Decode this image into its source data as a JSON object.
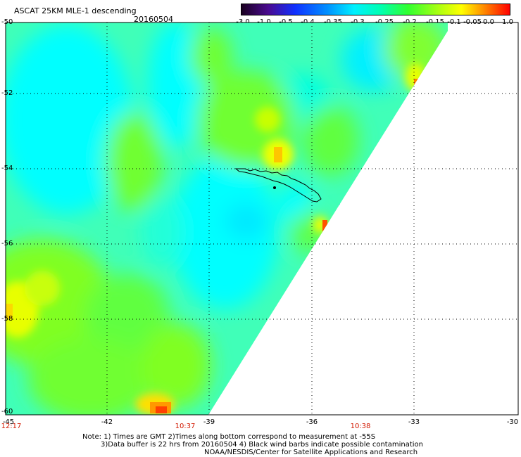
{
  "header": {
    "title": "ASCAT 25KM MLE-1 descending",
    "date": "20160504"
  },
  "colorbar": {
    "labels": [
      "-3.0",
      "-1.0",
      "-0.5",
      "-0.4",
      "-0.35",
      "-0.3",
      "-0.25",
      "-0.2",
      "-0.15",
      "-0.1",
      "-0.05",
      "0.0",
      "1.0"
    ],
    "colors": [
      "#2a0030",
      "#5a10a8",
      "#1428ff",
      "#0078ff",
      "#00b8ff",
      "#00f0ff",
      "#00ffc0",
      "#40ff40",
      "#a0ff20",
      "#e8ff00",
      "#ffb000",
      "#ff5000",
      "#ff1010"
    ]
  },
  "map": {
    "lat_labels": [
      "-50",
      "-52",
      "-54",
      "-56",
      "-58",
      "-60"
    ],
    "lon_labels": [
      "-45",
      "-42",
      "-39",
      "-36",
      "-33",
      "-30"
    ],
    "time_labels": [
      "12:17",
      "10:37",
      "10:38"
    ],
    "colors": {
      "cyan": "#00ffff",
      "aqua": "#40ffc8",
      "green": "#60ff30",
      "yellowgreen": "#c8ff00",
      "yellow": "#ffe800",
      "orange": "#ff9800",
      "red": "#ff4000",
      "blue": "#0070ff"
    }
  },
  "notes": {
    "line1": "Note: 1) Times are GMT 2)Times along bottom correspond to measurement at -55S",
    "line2": "3)Data buffer is 22 hrs from 20160504 4) Black wind barbs indicate possible contamination",
    "line3": "NOAA/NESDIS/Center for Satellite Applications and Research"
  }
}
